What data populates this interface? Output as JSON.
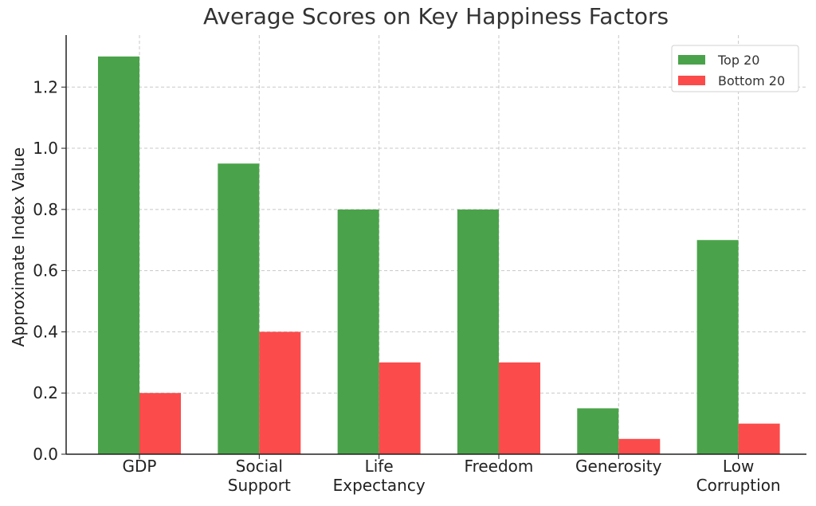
{
  "chart_data": {
    "type": "bar",
    "title": "Average Scores on Key Happiness Factors",
    "xlabel": "",
    "ylabel": "Approximate Index Value",
    "categories": [
      [
        "GDP"
      ],
      [
        "Social",
        "Support"
      ],
      [
        "Life",
        "Expectancy"
      ],
      [
        "Freedom"
      ],
      [
        "Generosity"
      ],
      [
        "Low",
        "Corruption"
      ]
    ],
    "series": [
      {
        "name": "Top 20",
        "values": [
          1.3,
          0.95,
          0.8,
          0.8,
          0.15,
          0.7
        ],
        "color": "#4aa34a"
      },
      {
        "name": "Bottom 20",
        "values": [
          0.2,
          0.4,
          0.3,
          0.3,
          0.05,
          0.1
        ],
        "color": "#fb4b4b"
      }
    ],
    "ylim": [
      0,
      1.37
    ],
    "yticks": [
      "0.0",
      "0.2",
      "0.4",
      "0.6",
      "0.8",
      "1.0",
      "1.2"
    ],
    "grid": true,
    "legend_position": "top-right"
  }
}
